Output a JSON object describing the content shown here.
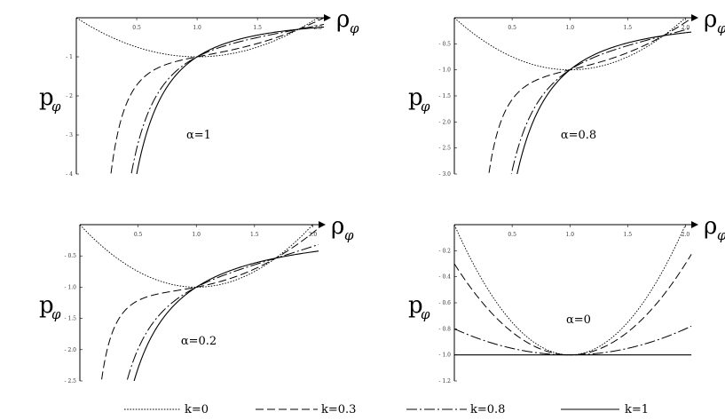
{
  "chart_data": {
    "type": "line",
    "series_styles": [
      {
        "name": "k=0",
        "k": 0,
        "dash": "1.6,1.6",
        "width": 0.9
      },
      {
        "name": "k=0.3",
        "k": 0.3,
        "dash": "9,4",
        "width": 1.0
      },
      {
        "name": "k=0.8",
        "k": 0.8,
        "dash": "12,3,2,3",
        "width": 1.0
      },
      {
        "name": "k=1",
        "k": 1,
        "dash": "",
        "width": 1.1
      }
    ],
    "legend": {
      "placement": "bottom",
      "entries": [
        "k=0",
        "k=0.3",
        "k=0.8",
        "k=1"
      ]
    },
    "x_axis_label": "ρ",
    "x_axis_sub": "φ",
    "y_axis_label": "p",
    "y_axis_sub": "φ",
    "panels": [
      {
        "id": "a1",
        "annotation": "α=1",
        "alpha": 1,
        "xlim": [
          0,
          2.05
        ],
        "ylim": [
          -4,
          0
        ],
        "xticks": [
          "0.5",
          "1.0",
          "1.5",
          "2.0"
        ],
        "yticks": [
          "- 1",
          "- 2",
          "- 3",
          "- 4"
        ],
        "ytick_values": [
          -1,
          -2,
          -3,
          -4
        ]
      },
      {
        "id": "a08",
        "annotation": "α=0.8",
        "alpha": 0.8,
        "xlim": [
          0,
          2.05
        ],
        "ylim": [
          -3,
          0
        ],
        "xticks": [
          "0.5",
          "1.0",
          "1.5",
          "2.0"
        ],
        "yticks": [
          "- 0.5",
          "- 1.0",
          "- 1.5",
          "- 2.0",
          "- 2.5",
          "- 3.0"
        ],
        "ytick_values": [
          -0.5,
          -1,
          -1.5,
          -2,
          -2.5,
          -3
        ]
      },
      {
        "id": "a02",
        "annotation": "α=0.2",
        "alpha": 0.2,
        "xlim": [
          0,
          2.05
        ],
        "ylim": [
          -2.5,
          0
        ],
        "xticks": [
          "0.5",
          "1.0",
          "1.5",
          "2.0"
        ],
        "yticks": [
          "- 0.5",
          "- 1.0",
          "- 1.5",
          "- 2.0",
          "- 2.5"
        ],
        "ytick_values": [
          -0.5,
          -1,
          -1.5,
          -2,
          -2.5
        ]
      },
      {
        "id": "a0",
        "annotation": "α=0",
        "alpha": 0,
        "xlim": [
          0,
          2.05
        ],
        "ylim": [
          -1.2,
          0
        ],
        "xticks": [
          "0.5",
          "1.0",
          "1.5",
          "2.0"
        ],
        "yticks": [
          "- 0.2",
          "- 0.4",
          "- 0.6",
          "- 0.8",
          "- 1.0",
          "- 1.2"
        ],
        "ytick_values": [
          -0.2,
          -0.4,
          -0.6,
          -0.8,
          -1.0,
          -1.2
        ]
      }
    ]
  }
}
